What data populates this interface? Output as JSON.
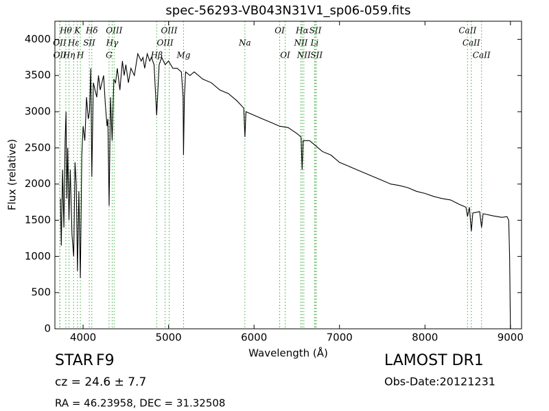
{
  "chart_data": {
    "type": "line",
    "title": "spec-56293-VB043N31V1_sp06-059.fits",
    "x_label": "Wavelength (Å)",
    "y_label": "Flux (relative)",
    "xlim": [
      3670,
      9130
    ],
    "ylim": [
      0,
      4250
    ],
    "xticks": [
      4000,
      5000,
      6000,
      7000,
      8000,
      9000
    ],
    "yticks": [
      0,
      500,
      1000,
      1500,
      2000,
      2500,
      3000,
      3500,
      4000
    ],
    "line_color": "#000000",
    "marker_color": "#33aa33",
    "x": [
      3735,
      3745,
      3760,
      3775,
      3790,
      3800,
      3810,
      3820,
      3835,
      3850,
      3870,
      3890,
      3905,
      3920,
      3934,
      3950,
      3968,
      3985,
      4000,
      4020,
      4040,
      4060,
      4075,
      4090,
      4102,
      4120,
      4140,
      4160,
      4180,
      4200,
      4220,
      4240,
      4260,
      4280,
      4290,
      4304,
      4320,
      4340,
      4360,
      4380,
      4400,
      4430,
      4460,
      4480,
      4500,
      4530,
      4560,
      4600,
      4640,
      4680,
      4700,
      4720,
      4750,
      4780,
      4800,
      4830,
      4861,
      4890,
      4920,
      4960,
      5000,
      5050,
      5100,
      5150,
      5170,
      5175,
      5185,
      5200,
      5250,
      5300,
      5400,
      5500,
      5600,
      5700,
      5800,
      5880,
      5893,
      5905,
      6000,
      6100,
      6200,
      6300,
      6400,
      6500,
      6550,
      6563,
      6575,
      6650,
      6700,
      6800,
      6900,
      7000,
      7100,
      7200,
      7300,
      7400,
      7500,
      7600,
      7700,
      7800,
      7900,
      8000,
      8100,
      8200,
      8300,
      8400,
      8480,
      8498,
      8520,
      8542,
      8560,
      8640,
      8662,
      8680,
      8800,
      8900,
      8960,
      8980,
      8990,
      9000
    ],
    "values": [
      1800,
      1150,
      2200,
      1400,
      2600,
      3000,
      1800,
      2500,
      1500,
      2200,
      1300,
      1000,
      2300,
      2000,
      800,
      1900,
      700,
      2400,
      2800,
      2600,
      3200,
      2900,
      3000,
      3600,
      2100,
      3400,
      3300,
      3200,
      3500,
      3300,
      3400,
      3500,
      3100,
      2800,
      2900,
      1700,
      3200,
      2600,
      3450,
      3400,
      3600,
      3300,
      3700,
      3500,
      3650,
      3400,
      3600,
      3500,
      3800,
      3700,
      3750,
      3600,
      3800,
      3700,
      3750,
      3650,
      2950,
      3650,
      3750,
      3650,
      3700,
      3600,
      3600,
      3550,
      3200,
      2400,
      3200,
      3550,
      3500,
      3550,
      3450,
      3400,
      3300,
      3250,
      3150,
      3050,
      2650,
      3000,
      2950,
      2900,
      2850,
      2800,
      2780,
      2700,
      2650,
      2200,
      2600,
      2600,
      2550,
      2450,
      2400,
      2300,
      2250,
      2200,
      2150,
      2100,
      2050,
      2000,
      1980,
      1950,
      1900,
      1870,
      1830,
      1800,
      1780,
      1720,
      1680,
      1550,
      1680,
      1350,
      1600,
      1620,
      1400,
      1590,
      1560,
      1540,
      1550,
      1500,
      1000,
      0
    ],
    "line_labels": [
      [
        {
          "label": "Hθ",
          "wavelength": 3798
        },
        {
          "label": "K",
          "wavelength": 3934
        },
        {
          "label": "Hδ",
          "wavelength": 4102
        },
        {
          "label": "OIII",
          "wavelength": 4363
        },
        {
          "label": "OIII",
          "wavelength": 5007
        },
        {
          "label": "OI",
          "wavelength": 6300
        },
        {
          "label": "Hα",
          "wavelength": 6563
        },
        {
          "label": "SII",
          "wavelength": 6717
        },
        {
          "label": "CaII",
          "wavelength": 8498
        }
      ],
      [
        {
          "label": "OII",
          "wavelength": 3726
        },
        {
          "label": "Hε",
          "wavelength": 3889
        },
        {
          "label": "SII",
          "wavelength": 4072
        },
        {
          "label": "Hγ",
          "wavelength": 4340
        },
        {
          "label": "OIII",
          "wavelength": 4959
        },
        {
          "label": "Na",
          "wavelength": 5893
        },
        {
          "label": "NII",
          "wavelength": 6548
        },
        {
          "label": "Li",
          "wavelength": 6708
        },
        {
          "label": "CaII",
          "wavelength": 8542
        }
      ],
      [
        {
          "label": "OII",
          "wavelength": 3729
        },
        {
          "label": "Hη",
          "wavelength": 3835
        },
        {
          "label": "H",
          "wavelength": 3968
        },
        {
          "label": "G",
          "wavelength": 4304
        },
        {
          "label": "Hβ",
          "wavelength": 4861
        },
        {
          "label": "Mg",
          "wavelength": 5175
        },
        {
          "label": "OI",
          "wavelength": 6364
        },
        {
          "label": "NII",
          "wavelength": 6583
        },
        {
          "label": "SII",
          "wavelength": 6731
        },
        {
          "label": "CaII",
          "wavelength": 8662
        }
      ]
    ],
    "object_class": "STAR",
    "subclass": "F9",
    "redshift": "cz = 24.6  ± 7.7",
    "coords": "RA = 46.23958, DEC = 31.32508",
    "survey": "LAMOST DR1",
    "obs_date": "Obs-Date:20121231"
  }
}
